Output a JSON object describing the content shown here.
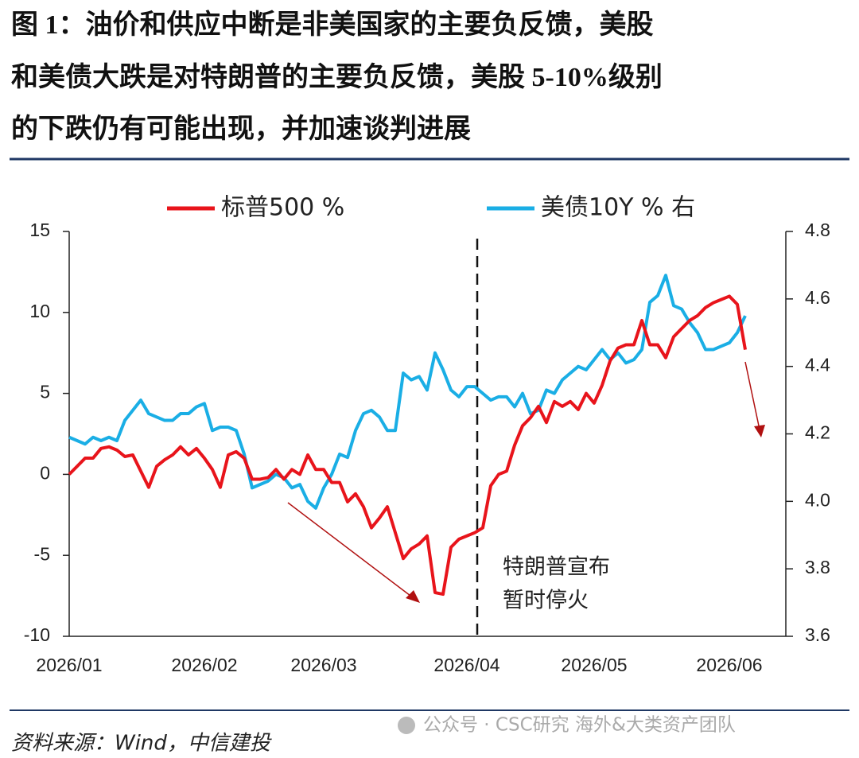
{
  "header": {
    "title_lines": [
      "图 1：油价和供应中断是非美国家的主要负反馈，美股",
      "和美债大跌是对特朗普的主要负反馈，美股 5-10%级别",
      "的下跌仍有可能出现，并加速谈判进展"
    ]
  },
  "footer": {
    "source": "资料来源：Wind，中信建投",
    "watermark": "公众号 · CSC研究 海外&大类资产团队"
  },
  "chart_data": {
    "type": "line",
    "annotations": [
      "特朗普宣布",
      "暂时停火"
    ],
    "categories": [
      "2026/01",
      null,
      null,
      null,
      null,
      null,
      null,
      null,
      null,
      null,
      null,
      null,
      null,
      null,
      null,
      null,
      null,
      "2026/02",
      null,
      null,
      null,
      null,
      null,
      null,
      null,
      null,
      null,
      null,
      null,
      null,
      null,
      null,
      "2026/03",
      null,
      null,
      null,
      null,
      null,
      null,
      null,
      null,
      null,
      null,
      null,
      null,
      null,
      null,
      null,
      null,
      null,
      "2026/04",
      null,
      null,
      null,
      null,
      null,
      null,
      null,
      null,
      null,
      null,
      null,
      null,
      null,
      null,
      null,
      "2026/05",
      null,
      null,
      null,
      null,
      null,
      null,
      null,
      null,
      null,
      null,
      null,
      null,
      null,
      null,
      null,
      null,
      "2026/06",
      null,
      null
    ],
    "series": [
      {
        "name": "标普500 %",
        "color": "#e8141b",
        "values": [
          0,
          0.5,
          1.0,
          1.0,
          1.6,
          1.7,
          1.5,
          1.1,
          1.2,
          0.2,
          -0.8,
          0.5,
          0.9,
          1.2,
          1.7,
          1.2,
          1.6,
          1.0,
          0.3,
          -0.8,
          1.2,
          1.4,
          1.0,
          -0.3,
          -0.3,
          -0.2,
          0.3,
          -0.3,
          0.3,
          0,
          1.2,
          0.3,
          0.3,
          -0.5,
          -0.5,
          -1.7,
          -1.2,
          -2.0,
          -3.3,
          -2.7,
          -2.0,
          -3.6,
          -5.2,
          -4.6,
          -4.3,
          -3.8,
          -7.3,
          -7.4,
          -4.5,
          -4.0,
          -3.8,
          -3.6,
          -3.3,
          -0.7,
          0,
          0.2,
          1.8,
          3.0,
          3.5,
          4.2,
          3.2,
          4.5,
          4.2,
          4.5,
          4.0,
          5.0,
          4.4,
          5.5,
          7.0,
          7.8,
          8.0,
          8.0,
          9.5,
          8.0,
          8.0,
          7.2,
          8.5,
          9.0,
          9.5,
          9.8,
          10.3,
          10.6,
          10.8,
          11.0,
          10.5,
          7.7
        ]
      },
      {
        "name": "美债10Y % 右",
        "color": "#1aaee5",
        "axis": "y2",
        "values": [
          4.19,
          4.18,
          4.17,
          4.19,
          4.18,
          4.19,
          4.18,
          4.24,
          4.27,
          4.3,
          4.26,
          4.25,
          4.24,
          4.24,
          4.26,
          4.26,
          4.28,
          4.29,
          4.21,
          4.22,
          4.22,
          4.21,
          4.14,
          4.04,
          4.05,
          4.06,
          4.08,
          4.07,
          4.04,
          4.05,
          4.0,
          3.98,
          4.04,
          4.08,
          4.14,
          4.13,
          4.21,
          4.26,
          4.27,
          4.25,
          4.21,
          4.21,
          4.38,
          4.36,
          4.37,
          4.33,
          4.44,
          4.39,
          4.33,
          4.31,
          4.34,
          4.34,
          4.32,
          4.3,
          4.31,
          4.31,
          4.28,
          4.32,
          4.26,
          4.27,
          4.33,
          4.32,
          4.36,
          4.38,
          4.4,
          4.39,
          4.42,
          4.45,
          4.42,
          4.44,
          4.41,
          4.42,
          4.45,
          4.59,
          4.61,
          4.67,
          4.58,
          4.57,
          4.53,
          4.5,
          4.45,
          4.45,
          4.46,
          4.47,
          4.5,
          4.55
        ]
      }
    ],
    "ylim": [
      -10,
      15
    ],
    "yticks": [
      15,
      10,
      5,
      0,
      -5,
      -10
    ],
    "y2lim": [
      3.6,
      4.8
    ],
    "y2ticks": [
      4.8,
      4.6,
      4.4,
      4.2,
      {
        "value": 4,
        "label": "4.0"
      },
      3.8,
      3.6
    ],
    "negative_tick_color": "#e8141b",
    "grid": false
  }
}
